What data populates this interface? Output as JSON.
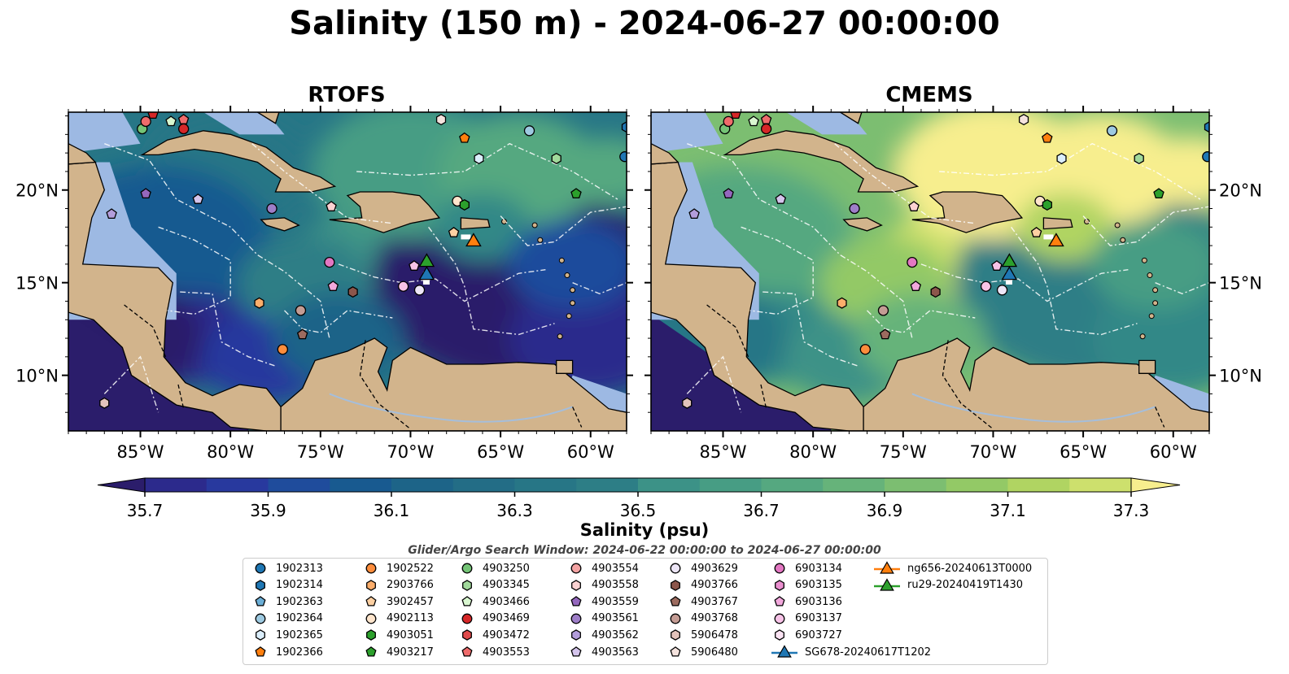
{
  "title": "Salinity (150 m) - 2024-06-27 00:00:00",
  "panels": [
    {
      "name": "RTOFS",
      "shift": 0
    },
    {
      "name": "CMEMS",
      "shift": 1
    }
  ],
  "lon_ticks": [
    "85°W",
    "80°W",
    "75°W",
    "70°W",
    "65°W",
    "60°W"
  ],
  "lat_ticks": [
    "20°N",
    "15°N",
    "10°N"
  ],
  "colorbar": {
    "title": "Salinity (psu)",
    "tick_labels": [
      "35.7",
      "35.9",
      "36.1",
      "36.3",
      "36.5",
      "36.7",
      "36.9",
      "37.1",
      "37.3"
    ],
    "colors": [
      "#2b1d6b",
      "#2c2a8c",
      "#28399e",
      "#1f4c9c",
      "#185a90",
      "#1d6488",
      "#236d86",
      "#277686",
      "#2d7e86",
      "#338887",
      "#3c9287",
      "#479d84",
      "#55a880",
      "#66b37a",
      "#7cbe71",
      "#93c966",
      "#b0d462",
      "#cde06d",
      "#f7ee8e"
    ]
  },
  "search_window": "Glider/Argo Search Window: 2024-06-22 00:00:00 to 2024-06-27 00:00:00",
  "legend": [
    {
      "label": "1902313",
      "color": "#1f77b4",
      "shape": "circle"
    },
    {
      "label": "1902314",
      "color": "#1f77b4",
      "shape": "hexagon"
    },
    {
      "label": "1902363",
      "color": "#6baed6",
      "shape": "pentagon"
    },
    {
      "label": "1902364",
      "color": "#9ecae1",
      "shape": "circle"
    },
    {
      "label": "1902365",
      "color": "#dbeefb",
      "shape": "hexagon"
    },
    {
      "label": "1902366",
      "color": "#ff7f0e",
      "shape": "pentagon"
    },
    {
      "label": "1902522",
      "color": "#fd8d3c",
      "shape": "circle"
    },
    {
      "label": "2903766",
      "color": "#fdae6b",
      "shape": "hexagon"
    },
    {
      "label": "3902457",
      "color": "#fdd0a2",
      "shape": "pentagon"
    },
    {
      "label": "4902113",
      "color": "#ffe5cc",
      "shape": "circle"
    },
    {
      "label": "4903051",
      "color": "#2ca02c",
      "shape": "hexagon"
    },
    {
      "label": "4903217",
      "color": "#2ca02c",
      "shape": "pentagon"
    },
    {
      "label": "4903250",
      "color": "#74c476",
      "shape": "circle"
    },
    {
      "label": "4903345",
      "color": "#a1d99b",
      "shape": "hexagon"
    },
    {
      "label": "4903466",
      "color": "#d9f7d0",
      "shape": "pentagon"
    },
    {
      "label": "4903469",
      "color": "#d62728",
      "shape": "circle"
    },
    {
      "label": "4903472",
      "color": "#e04a4b",
      "shape": "hexagon"
    },
    {
      "label": "4903553",
      "color": "#ef6b6b",
      "shape": "pentagon"
    },
    {
      "label": "4903554",
      "color": "#f4a3a3",
      "shape": "circle"
    },
    {
      "label": "4903558",
      "color": "#fbd2d2",
      "shape": "hexagon"
    },
    {
      "label": "4903559",
      "color": "#9467bd",
      "shape": "pentagon"
    },
    {
      "label": "4903561",
      "color": "#9e7ec8",
      "shape": "circle"
    },
    {
      "label": "4903562",
      "color": "#b39ddb",
      "shape": "hexagon"
    },
    {
      "label": "4903563",
      "color": "#d4c4ec",
      "shape": "pentagon"
    },
    {
      "label": "4903629",
      "color": "#ede6f7",
      "shape": "circle"
    },
    {
      "label": "4903766",
      "color": "#8c564b",
      "shape": "hexagon"
    },
    {
      "label": "4903767",
      "color": "#9c6b5f",
      "shape": "pentagon"
    },
    {
      "label": "4903768",
      "color": "#c49c94",
      "shape": "circle"
    },
    {
      "label": "5906478",
      "color": "#e2c3bb",
      "shape": "hexagon"
    },
    {
      "label": "5906480",
      "color": "#f5e3de",
      "shape": "pentagon"
    },
    {
      "label": "6903134",
      "color": "#e377c2",
      "shape": "circle"
    },
    {
      "label": "6903135",
      "color": "#ea8fcf",
      "shape": "hexagon"
    },
    {
      "label": "6903136",
      "color": "#f2a8dc",
      "shape": "pentagon"
    },
    {
      "label": "6903137",
      "color": "#f7c3e7",
      "shape": "circle"
    },
    {
      "label": "6903727",
      "color": "#fbe3f3",
      "shape": "hexagon"
    },
    {
      "label": "SG678-20240617T1202",
      "color": "#1f77b4",
      "shape": "triangle"
    },
    {
      "label": "ng656-20240613T0000",
      "color": "#ff7f0e",
      "shape": "triangle"
    },
    {
      "label": "ru29-20240419T1430",
      "color": "#2ca02c",
      "shape": "triangle"
    }
  ],
  "floats": [
    {
      "lon": -84.9,
      "lat": 23.3,
      "color": "#74c476",
      "shape": "circle"
    },
    {
      "lon": -84.7,
      "lat": 23.7,
      "color": "#ef6b6b",
      "shape": "circle"
    },
    {
      "lon": -84.3,
      "lat": 24.1,
      "color": "#d62728",
      "shape": "pentagon"
    },
    {
      "lon": -83.3,
      "lat": 23.7,
      "color": "#d9f7d0",
      "shape": "pentagon"
    },
    {
      "lon": -82.6,
      "lat": 23.8,
      "color": "#ef6b6b",
      "shape": "pentagon"
    },
    {
      "lon": -82.6,
      "lat": 23.3,
      "color": "#d62728",
      "shape": "circle"
    },
    {
      "lon": -68.3,
      "lat": 23.8,
      "color": "#f5e3de",
      "shape": "hexagon"
    },
    {
      "lon": -67.0,
      "lat": 22.8,
      "color": "#ff7f0e",
      "shape": "pentagon"
    },
    {
      "lon": -63.4,
      "lat": 23.2,
      "color": "#9ecae1",
      "shape": "circle"
    },
    {
      "lon": -58.0,
      "lat": 23.4,
      "color": "#1f77b4",
      "shape": "hexagon"
    },
    {
      "lon": -66.2,
      "lat": 21.7,
      "color": "#dbeefb",
      "shape": "hexagon"
    },
    {
      "lon": -61.9,
      "lat": 21.7,
      "color": "#a1d99b",
      "shape": "hexagon"
    },
    {
      "lon": -58.1,
      "lat": 21.8,
      "color": "#1f77b4",
      "shape": "circle"
    },
    {
      "lon": -84.7,
      "lat": 19.8,
      "color": "#9467bd",
      "shape": "pentagon"
    },
    {
      "lon": -81.8,
      "lat": 19.5,
      "color": "#d4c4ec",
      "shape": "pentagon"
    },
    {
      "lon": -86.6,
      "lat": 18.7,
      "color": "#b39ddb",
      "shape": "pentagon"
    },
    {
      "lon": -77.7,
      "lat": 19.0,
      "color": "#9e7ec8",
      "shape": "circle"
    },
    {
      "lon": -74.4,
      "lat": 19.1,
      "color": "#fbd2d2",
      "shape": "pentagon"
    },
    {
      "lon": -67.4,
      "lat": 19.4,
      "color": "#ffe5cc",
      "shape": "circle"
    },
    {
      "lon": -67.0,
      "lat": 19.2,
      "color": "#2ca02c",
      "shape": "hexagon"
    },
    {
      "lon": -60.8,
      "lat": 19.8,
      "color": "#2ca02c",
      "shape": "pentagon"
    },
    {
      "lon": -67.6,
      "lat": 17.7,
      "color": "#fdd0a2",
      "shape": "pentagon"
    },
    {
      "lon": -74.5,
      "lat": 16.1,
      "color": "#e377c2",
      "shape": "circle"
    },
    {
      "lon": -74.3,
      "lat": 14.8,
      "color": "#f2a8dc",
      "shape": "pentagon"
    },
    {
      "lon": -73.2,
      "lat": 14.5,
      "color": "#8c564b",
      "shape": "hexagon"
    },
    {
      "lon": -70.4,
      "lat": 14.8,
      "color": "#f7c3e7",
      "shape": "circle"
    },
    {
      "lon": -69.5,
      "lat": 14.6,
      "color": "#ede6f7",
      "shape": "circle"
    },
    {
      "lon": -69.8,
      "lat": 15.9,
      "color": "#f7c3e7",
      "shape": "pentagon"
    },
    {
      "lon": -78.4,
      "lat": 13.9,
      "color": "#fdae6b",
      "shape": "hexagon"
    },
    {
      "lon": -76.1,
      "lat": 13.5,
      "color": "#c49c94",
      "shape": "circle"
    },
    {
      "lon": -76.0,
      "lat": 12.2,
      "color": "#9c6b5f",
      "shape": "pentagon"
    },
    {
      "lon": -77.1,
      "lat": 11.4,
      "color": "#fd8d3c",
      "shape": "circle"
    },
    {
      "lon": -87.0,
      "lat": 8.5,
      "color": "#e2c3bb",
      "shape": "hexagon"
    }
  ],
  "gliders": [
    {
      "lon": -66.5,
      "lat": 17.2,
      "color": "#ff7f0e"
    },
    {
      "lon": -69.1,
      "lat": 16.1,
      "color": "#2ca02c"
    },
    {
      "lon": -69.1,
      "lat": 15.4,
      "color": "#1f77b4"
    }
  ],
  "axis_extent": {
    "lon": [
      -89,
      -58
    ],
    "lat": [
      7,
      24.2
    ]
  }
}
